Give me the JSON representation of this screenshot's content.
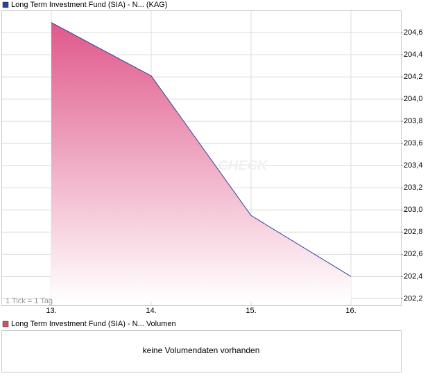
{
  "chart_data": {
    "type": "area",
    "categories": [
      "13.",
      "14.",
      "15.",
      "16."
    ],
    "series": [
      {
        "name": "Long Term Investment Fund (SIA) - N... (KAG)",
        "color": "#2b3f9e",
        "fill_color": "#e0588a",
        "values": [
          204.69,
          204.21,
          202.95,
          202.4
        ]
      }
    ],
    "ylim": [
      202.14,
      204.8
    ],
    "yticks": [
      {
        "value": 202.2,
        "label": "202,2"
      },
      {
        "value": 202.4,
        "label": "202,4"
      },
      {
        "value": 202.6,
        "label": "202,6"
      },
      {
        "value": 202.8,
        "label": "202,8"
      },
      {
        "value": 203.0,
        "label": "203,0"
      },
      {
        "value": 203.2,
        "label": "203,2"
      },
      {
        "value": 203.4,
        "label": "203,4"
      },
      {
        "value": 203.6,
        "label": "203,6"
      },
      {
        "value": 203.8,
        "label": "203,8"
      },
      {
        "value": 204.0,
        "label": "204,0"
      },
      {
        "value": 204.2,
        "label": "204,2"
      },
      {
        "value": 204.4,
        "label": "204,4"
      },
      {
        "value": 204.6,
        "label": "204,6"
      }
    ],
    "grid": true,
    "note": "1 Tick = 1 Tag",
    "watermark": "CHECK"
  },
  "volume_panel": {
    "legend": "Long Term Investment Fund (SIA) - N... Volumen",
    "color": "#d05060",
    "message": "keine Volumendaten vorhanden"
  }
}
